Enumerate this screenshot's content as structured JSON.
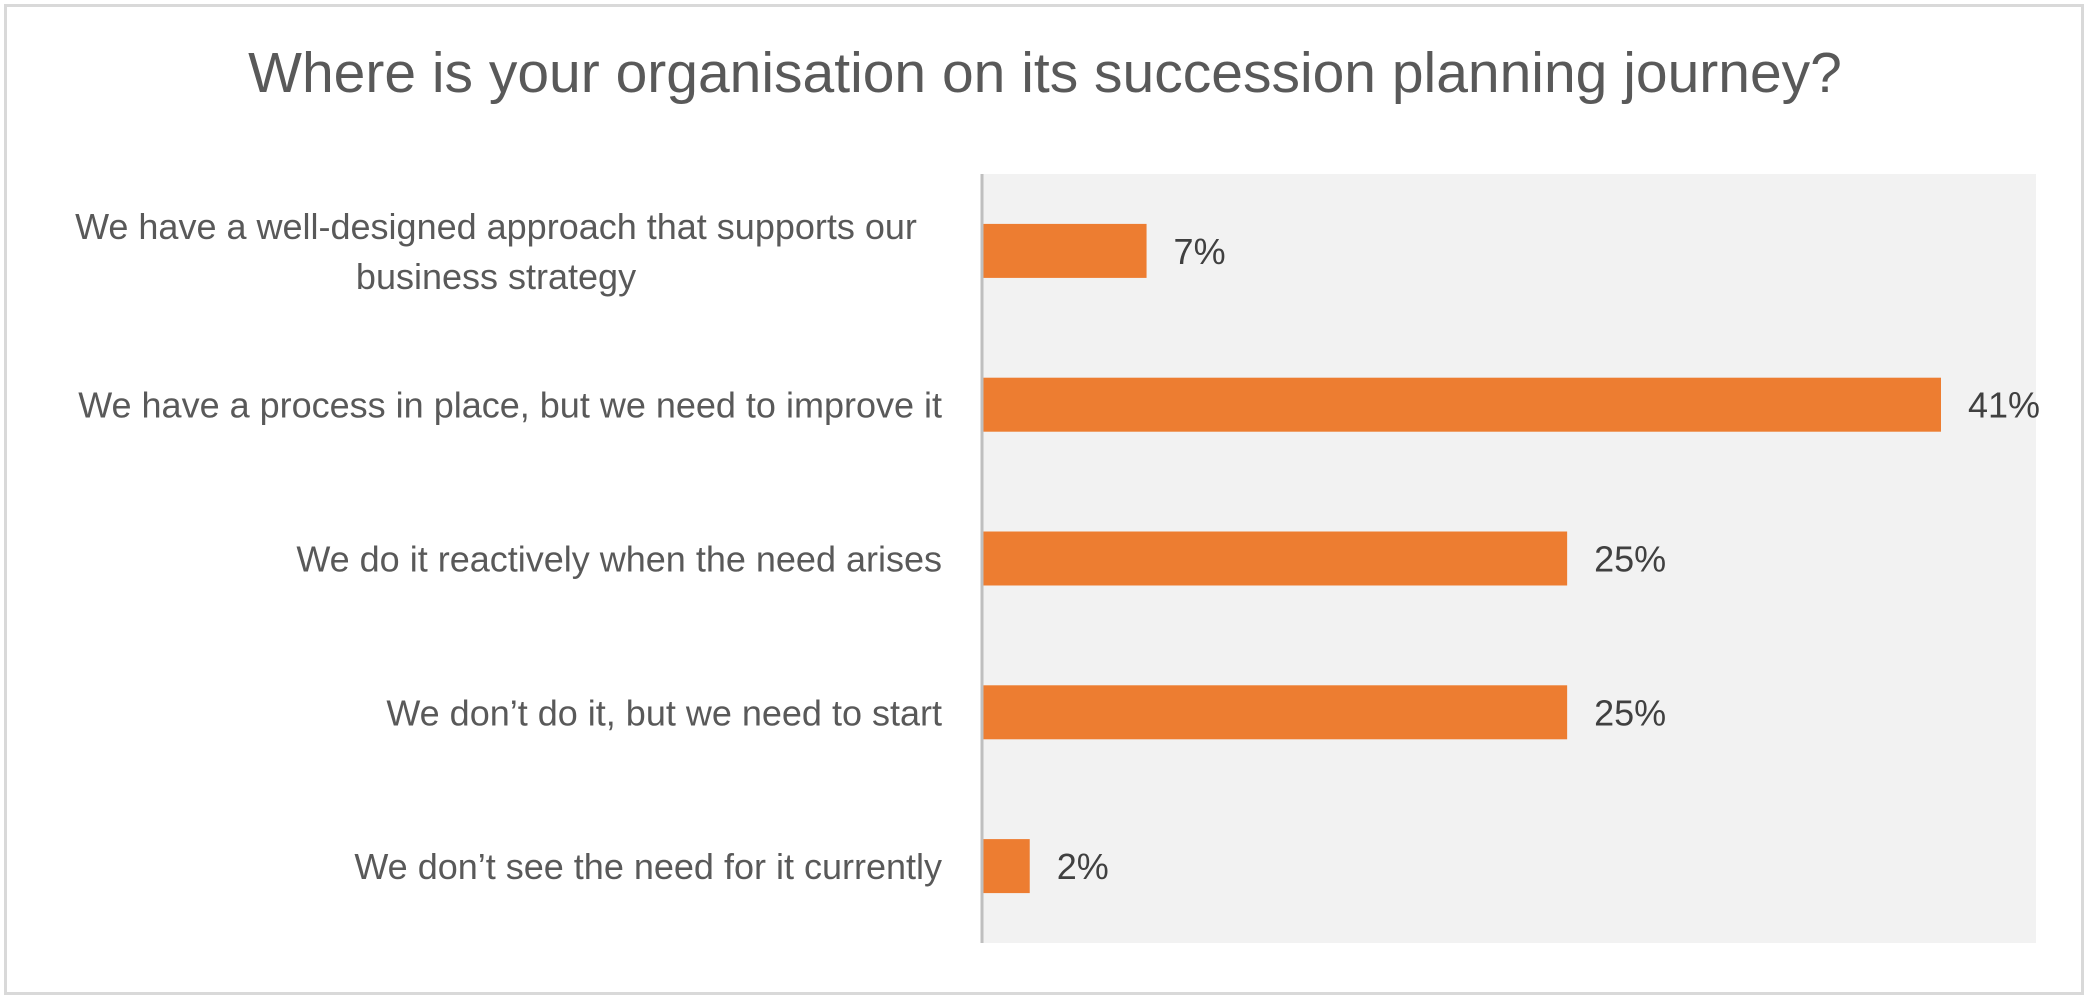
{
  "chart_data": {
    "type": "bar",
    "orientation": "horizontal",
    "title": "Where is your organisation on its succession planning journey?",
    "categories": [
      [
        "We have a well-designed approach that supports our",
        "business strategy"
      ],
      [
        "We have a process in place, but we need to improve it"
      ],
      [
        "We do it reactively when the need arises"
      ],
      [
        "We don’t do it, but we need to start"
      ],
      [
        "We don’t see the need for it currently"
      ]
    ],
    "values": [
      7,
      41,
      25,
      25,
      2
    ],
    "value_labels": [
      "7%",
      "41%",
      "25%",
      "25%",
      "2%"
    ],
    "unit": "%",
    "xlim": [
      0,
      45
    ],
    "grid": false,
    "legend": "none",
    "colors": {
      "bar": "#ed7d31",
      "plot_background": "#f2f2f2",
      "axis": "#bfbfbf"
    }
  }
}
